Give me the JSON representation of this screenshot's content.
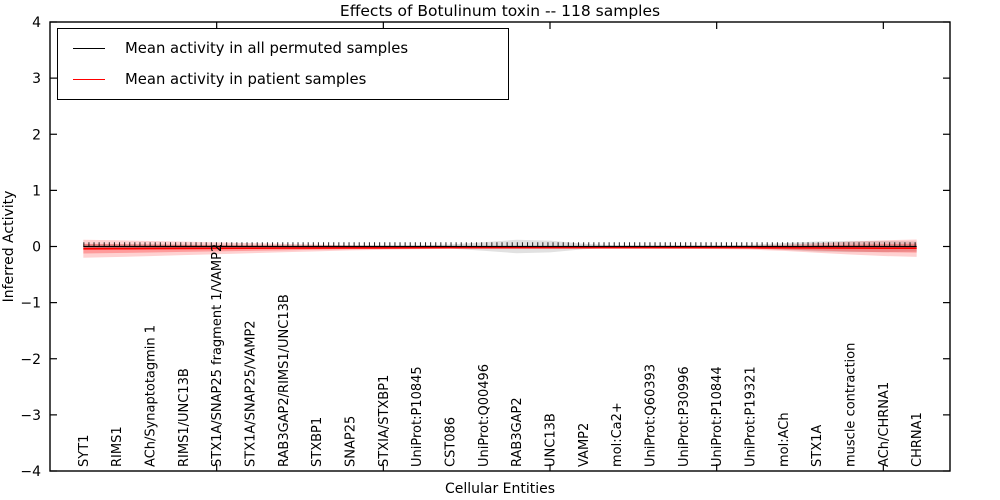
{
  "chart_data": {
    "type": "line",
    "title": "Effects of Botulinum toxin -- 118 samples",
    "xlabel": "Cellular Entities",
    "ylabel": "Inferred Activity",
    "ylim": [
      -4,
      4
    ],
    "xlim": [
      0,
      27
    ],
    "yticks": [
      -4,
      -3,
      -2,
      -1,
      0,
      1,
      2,
      3,
      4
    ],
    "xtick_values": [
      5,
      10,
      15,
      20,
      25
    ],
    "grid": false,
    "legend_position": "upper left",
    "categories": [
      "SYT1",
      "RIMS1",
      "ACh/Synaptotagmin 1",
      "RIMS1/UNC13B",
      "STX1A/SNAP25 fragment 1/VAMP2",
      "STX1A/SNAP25/VAMP2",
      "RAB3GAP2/RIMS1/UNC13B",
      "STXBP1",
      "SNAP25",
      "STXIA/STXBP1",
      "UniProt:P10845",
      "CST086",
      "UniProt:Q00496",
      "RAB3GAP2",
      "UNC13B",
      "VAMP2",
      "mol:Ca2+",
      "UniProt:Q60393",
      "UniProt:P30996",
      "UniProt:P10844",
      "UniProt:P19321",
      "mol:ACh",
      "STX1A",
      "muscle contraction",
      "ACh/CHRNA1",
      "CHRNA1"
    ],
    "series": [
      {
        "name": "Mean activity in all permuted samples",
        "color": "#000000",
        "values": [
          0,
          0,
          0,
          0,
          0,
          0,
          0,
          0,
          0,
          0,
          0,
          0,
          0,
          0,
          0,
          0,
          0,
          0,
          0,
          0,
          0,
          0,
          0,
          0,
          0,
          0
        ],
        "band": {
          "color": "#aaaaaa",
          "opacity": 0.35,
          "halfwidths": [
            0.05,
            0.045,
            0.04,
            0.036,
            0.032,
            0.028,
            0.025,
            0.022,
            0.02,
            0.02,
            0.02,
            0.035,
            0.075,
            0.12,
            0.105,
            0.05,
            0.02,
            0.02,
            0.02,
            0.022,
            0.03,
            0.06,
            0.09,
            0.1,
            0.1,
            0.09
          ]
        }
      },
      {
        "name": "Mean activity in patient samples",
        "color": "#ff0000",
        "values": [
          -0.04,
          -0.038,
          -0.036,
          -0.034,
          -0.032,
          -0.03,
          -0.028,
          -0.027,
          -0.025,
          -0.024,
          -0.022,
          -0.021,
          -0.02,
          -0.02,
          -0.02,
          -0.02,
          -0.02,
          -0.02,
          -0.02,
          -0.02,
          -0.021,
          -0.023,
          -0.026,
          -0.028,
          -0.03,
          -0.03
        ],
        "band_outer": {
          "color": "#ff0000",
          "opacity": 0.18,
          "halfwidths": [
            0.16,
            0.15,
            0.135,
            0.12,
            0.105,
            0.09,
            0.075,
            0.06,
            0.045,
            0.035,
            0.027,
            0.022,
            0.02,
            0.02,
            0.02,
            0.02,
            0.02,
            0.02,
            0.022,
            0.027,
            0.035,
            0.055,
            0.085,
            0.115,
            0.14,
            0.155
          ]
        },
        "band_inner": {
          "color": "#ff0000",
          "opacity": 0.26,
          "halfwidths": [
            0.085,
            0.078,
            0.07,
            0.062,
            0.055,
            0.047,
            0.04,
            0.032,
            0.025,
            0.019,
            0.015,
            0.012,
            0.011,
            0.011,
            0.011,
            0.011,
            0.011,
            0.011,
            0.012,
            0.015,
            0.019,
            0.03,
            0.045,
            0.06,
            0.072,
            0.08
          ]
        }
      }
    ]
  }
}
